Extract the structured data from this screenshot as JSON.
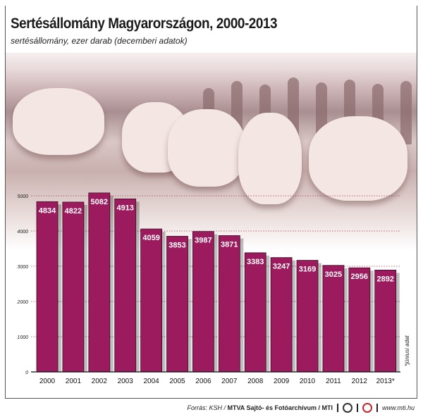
{
  "title": "Sertésállomány Magyarországon, 2000-2013",
  "subtitle": "sertésállomány, ezer darab (decemberi adatok)",
  "note": "*júniusi adat",
  "footer": {
    "source_prefix": "Forrás: KSH / ",
    "source_org": "MTVA Sajtó- és Fotóarchívum / MTI",
    "url": "www.mti.hu"
  },
  "colors": {
    "bar": "#9b1b5e",
    "grid": "#b03a5a"
  },
  "chart_data": {
    "type": "bar",
    "title": "Sertésállomány Magyarországon, 2000-2013",
    "ylabel": "",
    "xlabel": "",
    "categories": [
      "2000",
      "2001",
      "2002",
      "2003",
      "2004",
      "2005",
      "2006",
      "2007",
      "2008",
      "2009",
      "2010",
      "2011",
      "2012",
      "2013*"
    ],
    "values": [
      4834,
      4822,
      5082,
      4913,
      4059,
      3853,
      3987,
      3871,
      3383,
      3247,
      3169,
      3025,
      2956,
      2892
    ],
    "ylim": [
      0,
      5000
    ],
    "yticks": [
      0,
      1000,
      2000,
      3000,
      4000,
      5000
    ],
    "grid": true
  }
}
